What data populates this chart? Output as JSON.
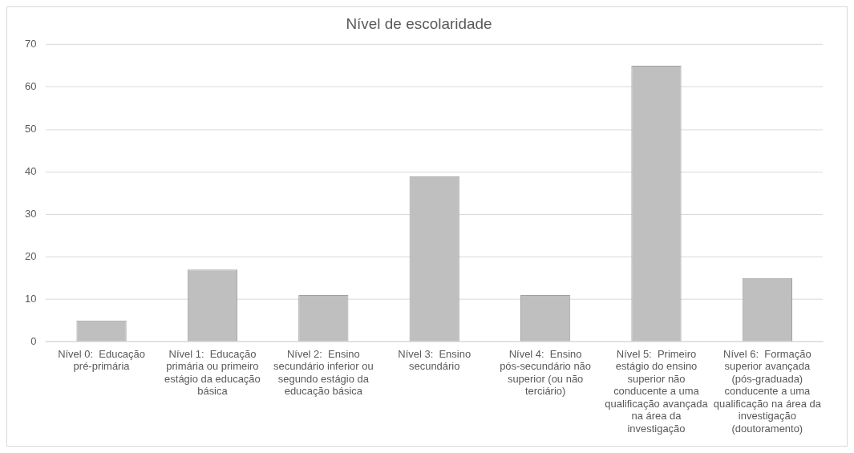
{
  "chart_data": {
    "type": "bar",
    "title": "Nível de escolaridade",
    "categories": [
      "Nível 0:  Educação pré-primária",
      "Nível 1:  Educação primária ou primeiro estágio da educação básica",
      "Nível 2:  Ensino secundário inferior ou segundo estágio da educação básica",
      "Nível 3:  Ensino secundário",
      "Nível 4:  Ensino pós-secundário não superior (ou não terciário)",
      "Nível 5:  Primeiro estágio do ensino superior não conducente a uma qualificação avançada na área da investigação",
      "Nível 6:  Formação superior avançada (pós-graduada) conducente a uma qualificação na área da investigação (doutoramento)"
    ],
    "values": [
      5,
      17,
      11,
      39,
      11,
      65,
      15
    ],
    "color": "#bfbfbf",
    "ylim": [
      0,
      70
    ],
    "yticks": [
      0,
      10,
      20,
      30,
      40,
      50,
      60,
      70
    ],
    "grid": "y",
    "legend": false
  }
}
